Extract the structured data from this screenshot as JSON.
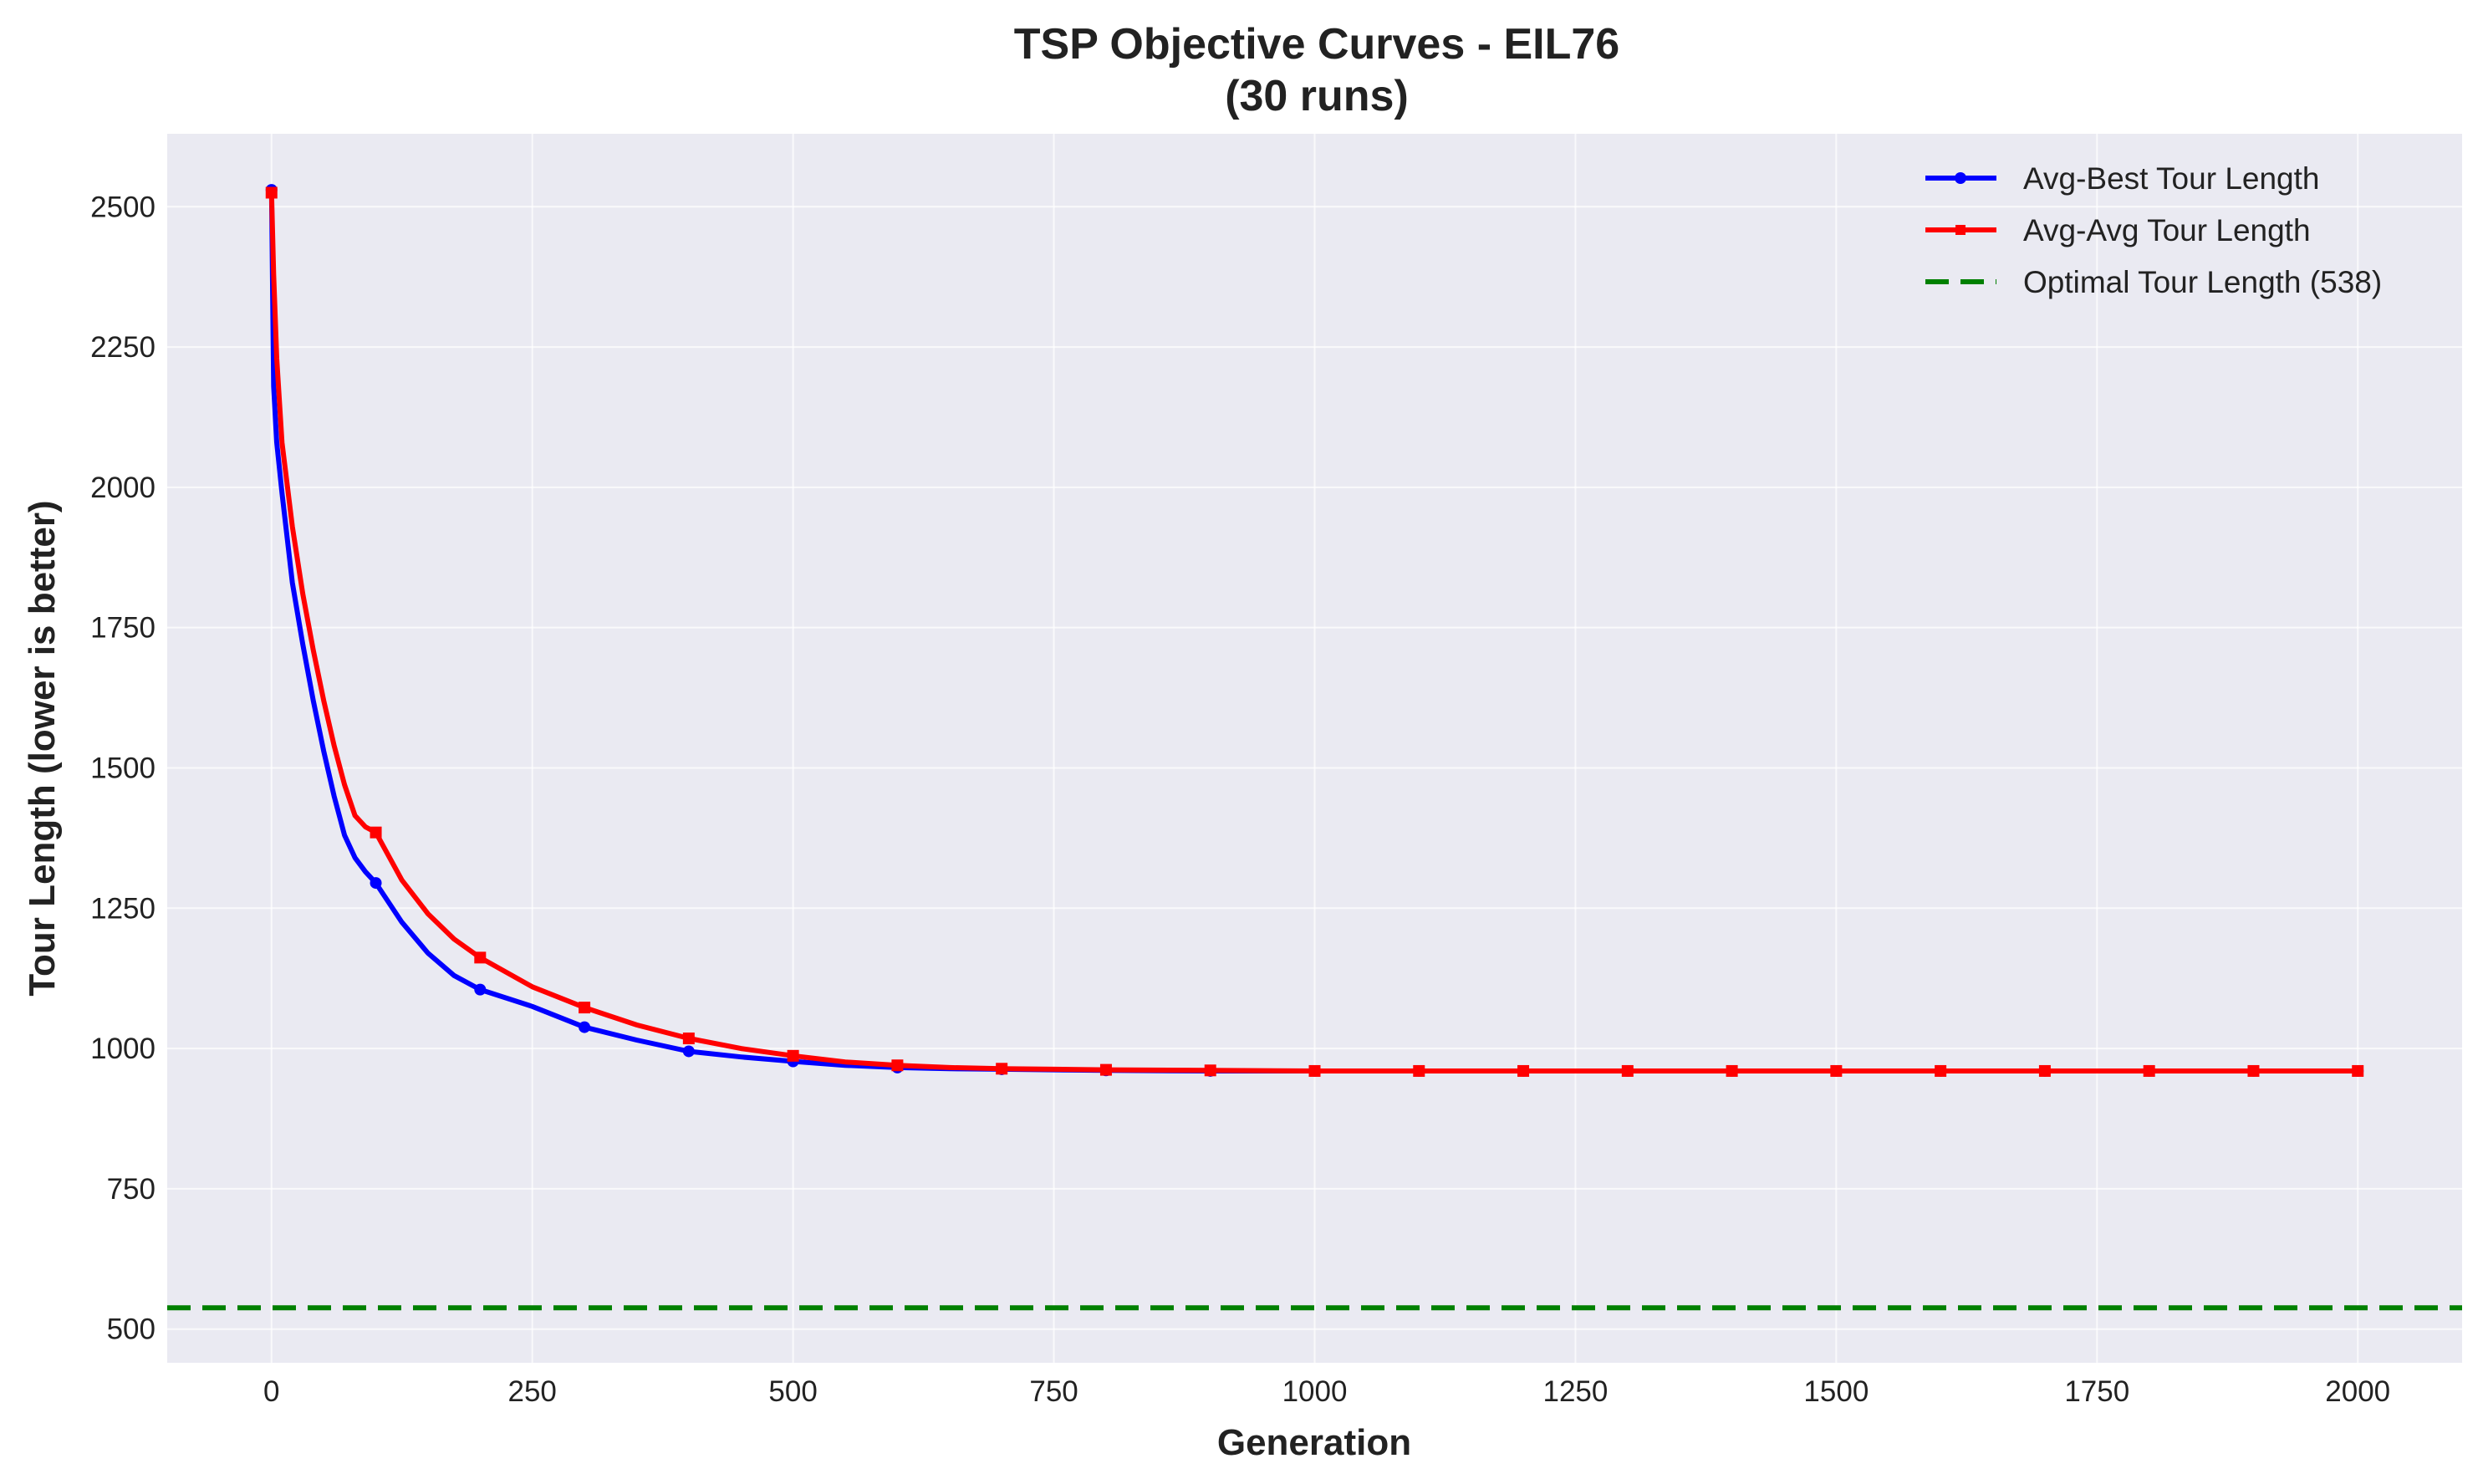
{
  "chart_data": {
    "type": "line",
    "title": "TSP Objective Curves - EIL76",
    "subtitle": "(30 runs)",
    "xlabel": "Generation",
    "ylabel": "Tour Length (lower is better)",
    "xlim": [
      -100,
      2100
    ],
    "ylim": [
      440,
      2630
    ],
    "x_ticks": [
      0,
      250,
      500,
      750,
      1000,
      1250,
      1500,
      1750,
      2000
    ],
    "y_ticks": [
      500,
      750,
      1000,
      1250,
      1500,
      1750,
      2000,
      2250,
      2500
    ],
    "grid": true,
    "legend_position": "top-right",
    "series": [
      {
        "name": "Avg-Best Tour Length",
        "color": "#0000ff",
        "marker": "circle",
        "x": [
          0,
          2,
          5,
          10,
          15,
          20,
          30,
          40,
          50,
          60,
          70,
          80,
          90,
          100,
          125,
          150,
          175,
          200,
          250,
          300,
          350,
          400,
          450,
          500,
          550,
          600,
          650,
          700,
          750,
          800,
          900,
          1000,
          1100,
          1200,
          1300,
          1400,
          1500,
          1600,
          1700,
          1800,
          1900,
          2000
        ],
        "y": [
          2530,
          2180,
          2080,
          1990,
          1910,
          1830,
          1720,
          1620,
          1530,
          1450,
          1380,
          1340,
          1315,
          1295,
          1225,
          1170,
          1130,
          1105,
          1075,
          1038,
          1015,
          995,
          985,
          977,
          970,
          966,
          964,
          963,
          962,
          961,
          960,
          960,
          960,
          960,
          960,
          960,
          960,
          960,
          960,
          960,
          960,
          960
        ],
        "marker_x": [
          0,
          100,
          200,
          300,
          400,
          500,
          600,
          700,
          800,
          900,
          1000,
          1100,
          1200,
          1300,
          1400,
          1500,
          1600,
          1700,
          1800,
          1900,
          2000
        ]
      },
      {
        "name": "Avg-Avg Tour Length",
        "color": "#ff0000",
        "marker": "square",
        "x": [
          0,
          2,
          5,
          10,
          20,
          30,
          40,
          50,
          60,
          70,
          80,
          90,
          100,
          125,
          150,
          175,
          200,
          250,
          300,
          350,
          400,
          450,
          500,
          550,
          600,
          650,
          700,
          750,
          800,
          900,
          1000,
          1100,
          1200,
          1300,
          1400,
          1500,
          1600,
          1700,
          1800,
          1900,
          2000
        ],
        "y": [
          2525,
          2380,
          2230,
          2080,
          1930,
          1810,
          1710,
          1620,
          1540,
          1470,
          1415,
          1395,
          1385,
          1300,
          1240,
          1195,
          1162,
          1110,
          1073,
          1042,
          1018,
          1000,
          987,
          976,
          970,
          966,
          964,
          963,
          962,
          961,
          960,
          960,
          960,
          960,
          960,
          960,
          960,
          960,
          960,
          960,
          960
        ],
        "marker_x": [
          0,
          100,
          200,
          300,
          400,
          500,
          600,
          700,
          800,
          900,
          1000,
          1100,
          1200,
          1300,
          1400,
          1500,
          1600,
          1700,
          1800,
          1900,
          2000
        ]
      },
      {
        "name": "Optimal Tour Length (538)",
        "color": "#008000",
        "style": "dashed",
        "constant_y": 538
      }
    ]
  }
}
